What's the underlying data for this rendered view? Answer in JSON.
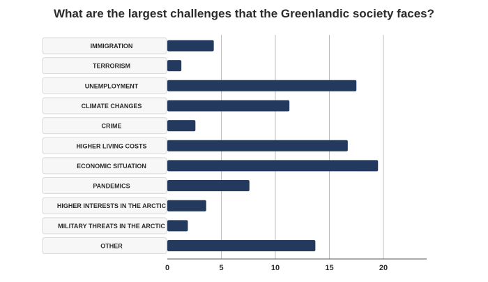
{
  "chart_data": {
    "type": "bar",
    "orientation": "horizontal",
    "title": "What are the largest challenges that the Greenlandic society faces?",
    "categories": [
      "IMMIGRATION",
      "TERRORISM",
      "UNEMPLOYMENT",
      "CLIMATE CHANGES",
      "CRIME",
      "HIGHER LIVING COSTS",
      "ECONOMIC SITUATION",
      "PANDEMICS",
      "HIGHER INTERESTS IN THE ARCTIC",
      "MILITARY THREATS IN THE ARCTIC",
      "OTHER"
    ],
    "values": [
      4.3,
      1.3,
      17.5,
      11.3,
      2.6,
      16.7,
      19.5,
      7.6,
      3.6,
      1.9,
      13.7
    ],
    "xlim": [
      0,
      24
    ],
    "xticks": [
      0,
      5,
      10,
      15,
      20
    ],
    "grid": true,
    "bar_color": "#233a5e",
    "label_box_color": "#f7f7f7",
    "label_border_color": "#d8d8d8",
    "grid_color": "#bdbdbd"
  }
}
